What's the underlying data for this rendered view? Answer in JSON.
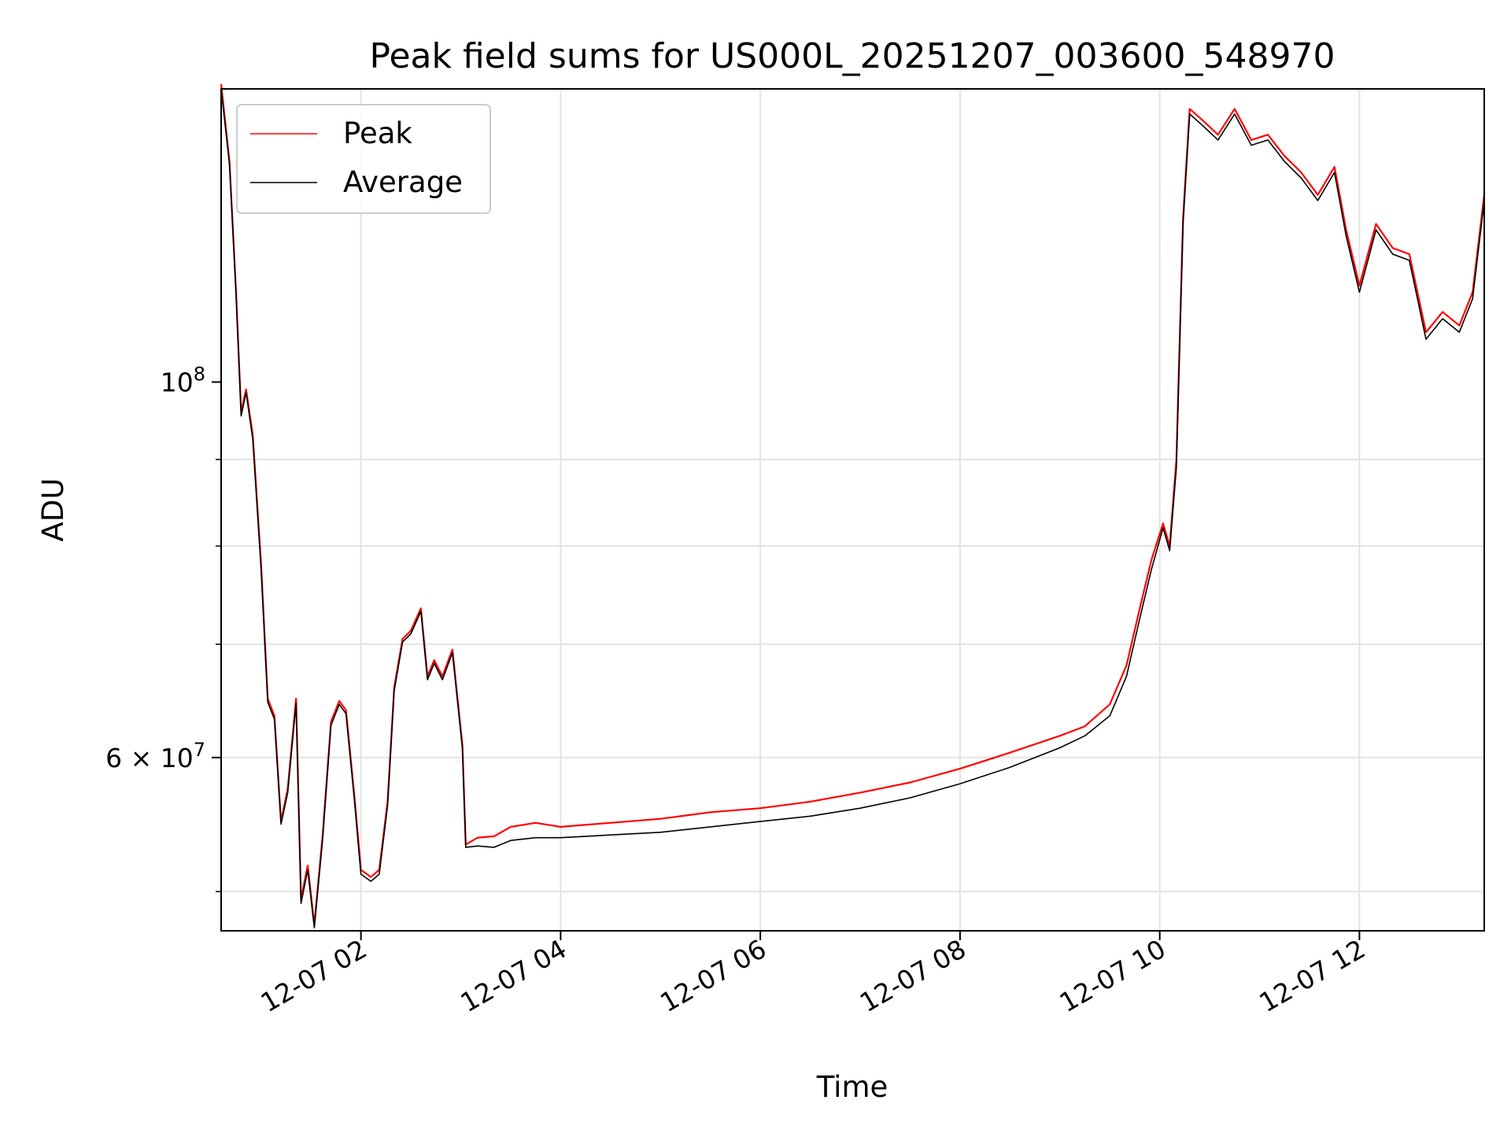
{
  "chart_data": {
    "type": "line",
    "title": "Peak field sums for US000L_20251207_003600_548970",
    "xlabel": "Time",
    "ylabel": "ADU",
    "yscale": "log",
    "xlim": [
      "2025-12-07 00:36",
      "2025-12-07 13:15"
    ],
    "ylim": [
      47400000,
      149000000
    ],
    "grid": true,
    "legend_position": "upper-left",
    "x_tick_labels": [
      "12-07 02",
      "12-07 04",
      "12-07 06",
      "12-07 08",
      "12-07 10",
      "12-07 12"
    ],
    "y_tick_labels": [
      {
        "value": 100000000,
        "mantissa": "10",
        "exponent": "8"
      },
      {
        "value": 60000000,
        "mantissa": "6 × 10",
        "exponent": "7"
      }
    ],
    "series": [
      {
        "name": "Peak",
        "color": "#ff0000",
        "points": [
          [
            "2025-12-07 00:36",
            150000000
          ],
          [
            "2025-12-07 00:41",
            135000000
          ],
          [
            "2025-12-07 00:45",
            113000000
          ],
          [
            "2025-12-07 00:48",
            96000000
          ],
          [
            "2025-12-07 00:51",
            99000000
          ],
          [
            "2025-12-07 00:55",
            93000000
          ],
          [
            "2025-12-07 01:00",
            78000000
          ],
          [
            "2025-12-07 01:04",
            65000000
          ],
          [
            "2025-12-07 01:08",
            63500000
          ],
          [
            "2025-12-07 01:12",
            55000000
          ],
          [
            "2025-12-07 01:16",
            57500000
          ],
          [
            "2025-12-07 01:21",
            65000000
          ],
          [
            "2025-12-07 01:24",
            49500000
          ],
          [
            "2025-12-07 01:28",
            51800000
          ],
          [
            "2025-12-07 01:32",
            47800000
          ],
          [
            "2025-12-07 01:37",
            54000000
          ],
          [
            "2025-12-07 01:42",
            63000000
          ],
          [
            "2025-12-07 01:47",
            64800000
          ],
          [
            "2025-12-07 01:51",
            64000000
          ],
          [
            "2025-12-07 01:56",
            57000000
          ],
          [
            "2025-12-07 02:00",
            51500000
          ],
          [
            "2025-12-07 02:06",
            51000000
          ],
          [
            "2025-12-07 02:11",
            51500000
          ],
          [
            "2025-12-07 02:16",
            56500000
          ],
          [
            "2025-12-07 02:20",
            66000000
          ],
          [
            "2025-12-07 02:25",
            70500000
          ],
          [
            "2025-12-07 02:30",
            71300000
          ],
          [
            "2025-12-07 02:36",
            73500000
          ],
          [
            "2025-12-07 02:40",
            67000000
          ],
          [
            "2025-12-07 02:44",
            68500000
          ],
          [
            "2025-12-07 02:49",
            67000000
          ],
          [
            "2025-12-07 02:55",
            69500000
          ],
          [
            "2025-12-07 03:01",
            61000000
          ],
          [
            "2025-12-07 03:03",
            53300000
          ],
          [
            "2025-12-07 03:10",
            53800000
          ],
          [
            "2025-12-07 03:20",
            53900000
          ],
          [
            "2025-12-07 03:30",
            54600000
          ],
          [
            "2025-12-07 03:45",
            54900000
          ],
          [
            "2025-12-07 04:00",
            54600000
          ],
          [
            "2025-12-07 04:30",
            54900000
          ],
          [
            "2025-12-07 05:00",
            55200000
          ],
          [
            "2025-12-07 05:30",
            55700000
          ],
          [
            "2025-12-07 06:00",
            56000000
          ],
          [
            "2025-12-07 06:30",
            56500000
          ],
          [
            "2025-12-07 07:00",
            57200000
          ],
          [
            "2025-12-07 07:30",
            58000000
          ],
          [
            "2025-12-07 08:00",
            59100000
          ],
          [
            "2025-12-07 08:30",
            60400000
          ],
          [
            "2025-12-07 09:00",
            61800000
          ],
          [
            "2025-12-07 09:15",
            62600000
          ],
          [
            "2025-12-07 09:30",
            64500000
          ],
          [
            "2025-12-07 09:40",
            68000000
          ],
          [
            "2025-12-07 09:48",
            73500000
          ],
          [
            "2025-12-07 09:55",
            78500000
          ],
          [
            "2025-12-07 10:02",
            82500000
          ],
          [
            "2025-12-07 10:06",
            80000000
          ],
          [
            "2025-12-07 10:10",
            90000000
          ],
          [
            "2025-12-07 10:14",
            125000000
          ],
          [
            "2025-12-07 10:18",
            145000000
          ],
          [
            "2025-12-07 10:25",
            143000000
          ],
          [
            "2025-12-07 10:35",
            140000000
          ],
          [
            "2025-12-07 10:45",
            145000000
          ],
          [
            "2025-12-07 10:55",
            139000000
          ],
          [
            "2025-12-07 11:05",
            140000000
          ],
          [
            "2025-12-07 11:15",
            136000000
          ],
          [
            "2025-12-07 11:25",
            133000000
          ],
          [
            "2025-12-07 11:35",
            129000000
          ],
          [
            "2025-12-07 11:45",
            134000000
          ],
          [
            "2025-12-07 11:52",
            123000000
          ],
          [
            "2025-12-07 12:00",
            114000000
          ],
          [
            "2025-12-07 12:10",
            124000000
          ],
          [
            "2025-12-07 12:20",
            120000000
          ],
          [
            "2025-12-07 12:30",
            119000000
          ],
          [
            "2025-12-07 12:40",
            107000000
          ],
          [
            "2025-12-07 12:50",
            110000000
          ],
          [
            "2025-12-07 13:00",
            108000000
          ],
          [
            "2025-12-07 13:08",
            113000000
          ],
          [
            "2025-12-07 13:15",
            129000000
          ]
        ]
      },
      {
        "name": "Average",
        "color": "#000000",
        "points": [
          [
            "2025-12-07 00:36",
            149000000
          ],
          [
            "2025-12-07 00:41",
            134500000
          ],
          [
            "2025-12-07 00:45",
            112500000
          ],
          [
            "2025-12-07 00:48",
            95500000
          ],
          [
            "2025-12-07 00:51",
            98600000
          ],
          [
            "2025-12-07 00:55",
            92500000
          ],
          [
            "2025-12-07 01:00",
            77500000
          ],
          [
            "2025-12-07 01:04",
            64700000
          ],
          [
            "2025-12-07 01:08",
            63200000
          ],
          [
            "2025-12-07 01:12",
            54800000
          ],
          [
            "2025-12-07 01:16",
            57200000
          ],
          [
            "2025-12-07 01:21",
            64600000
          ],
          [
            "2025-12-07 01:24",
            49200000
          ],
          [
            "2025-12-07 01:28",
            51500000
          ],
          [
            "2025-12-07 01:32",
            47600000
          ],
          [
            "2025-12-07 01:37",
            53700000
          ],
          [
            "2025-12-07 01:42",
            62700000
          ],
          [
            "2025-12-07 01:47",
            64500000
          ],
          [
            "2025-12-07 01:51",
            63700000
          ],
          [
            "2025-12-07 01:56",
            56700000
          ],
          [
            "2025-12-07 02:00",
            51200000
          ],
          [
            "2025-12-07 02:06",
            50700000
          ],
          [
            "2025-12-07 02:11",
            51200000
          ],
          [
            "2025-12-07 02:16",
            56200000
          ],
          [
            "2025-12-07 02:20",
            65700000
          ],
          [
            "2025-12-07 02:25",
            70200000
          ],
          [
            "2025-12-07 02:30",
            71000000
          ],
          [
            "2025-12-07 02:36",
            73200000
          ],
          [
            "2025-12-07 02:40",
            66700000
          ],
          [
            "2025-12-07 02:44",
            68200000
          ],
          [
            "2025-12-07 02:49",
            66700000
          ],
          [
            "2025-12-07 02:55",
            69200000
          ],
          [
            "2025-12-07 03:01",
            60700000
          ],
          [
            "2025-12-07 03:03",
            53100000
          ],
          [
            "2025-12-07 03:10",
            53200000
          ],
          [
            "2025-12-07 03:20",
            53100000
          ],
          [
            "2025-12-07 03:30",
            53600000
          ],
          [
            "2025-12-07 03:45",
            53800000
          ],
          [
            "2025-12-07 04:00",
            53800000
          ],
          [
            "2025-12-07 04:30",
            54000000
          ],
          [
            "2025-12-07 05:00",
            54200000
          ],
          [
            "2025-12-07 05:30",
            54600000
          ],
          [
            "2025-12-07 06:00",
            55000000
          ],
          [
            "2025-12-07 06:30",
            55400000
          ],
          [
            "2025-12-07 07:00",
            56000000
          ],
          [
            "2025-12-07 07:30",
            56800000
          ],
          [
            "2025-12-07 08:00",
            57900000
          ],
          [
            "2025-12-07 08:30",
            59200000
          ],
          [
            "2025-12-07 09:00",
            60800000
          ],
          [
            "2025-12-07 09:15",
            61800000
          ],
          [
            "2025-12-07 09:30",
            63500000
          ],
          [
            "2025-12-07 09:40",
            67000000
          ],
          [
            "2025-12-07 09:48",
            72500000
          ],
          [
            "2025-12-07 09:55",
            77500000
          ],
          [
            "2025-12-07 10:02",
            82000000
          ],
          [
            "2025-12-07 10:06",
            79500000
          ],
          [
            "2025-12-07 10:10",
            89000000
          ],
          [
            "2025-12-07 10:14",
            124000000
          ],
          [
            "2025-12-07 10:18",
            144000000
          ],
          [
            "2025-12-07 10:25",
            142000000
          ],
          [
            "2025-12-07 10:35",
            139000000
          ],
          [
            "2025-12-07 10:45",
            144000000
          ],
          [
            "2025-12-07 10:55",
            138000000
          ],
          [
            "2025-12-07 11:05",
            139000000
          ],
          [
            "2025-12-07 11:15",
            135000000
          ],
          [
            "2025-12-07 11:25",
            132000000
          ],
          [
            "2025-12-07 11:35",
            128000000
          ],
          [
            "2025-12-07 11:45",
            133000000
          ],
          [
            "2025-12-07 11:52",
            122000000
          ],
          [
            "2025-12-07 12:00",
            113000000
          ],
          [
            "2025-12-07 12:10",
            123000000
          ],
          [
            "2025-12-07 12:20",
            119000000
          ],
          [
            "2025-12-07 12:30",
            118000000
          ],
          [
            "2025-12-07 12:40",
            106000000
          ],
          [
            "2025-12-07 12:50",
            109000000
          ],
          [
            "2025-12-07 13:00",
            107000000
          ],
          [
            "2025-12-07 13:08",
            112000000
          ],
          [
            "2025-12-07 13:15",
            128000000
          ]
        ]
      }
    ]
  }
}
